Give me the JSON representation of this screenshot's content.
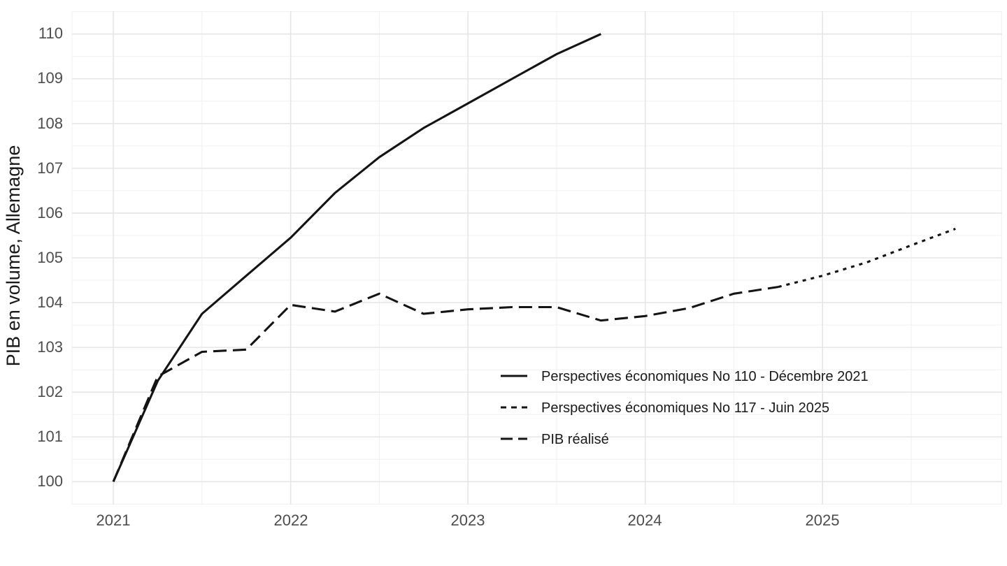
{
  "chart_data": {
    "type": "line",
    "title": "",
    "xlabel": "",
    "ylabel": "PIB en volume, Allemagne",
    "grid": "on",
    "legend_position": "inside-right-lower",
    "xlim": [
      2020.767,
      2026.013
    ],
    "ylim": [
      99.49,
      110.51
    ],
    "x_ticks": [
      {
        "value": 2021,
        "label": "2021"
      },
      {
        "value": 2022,
        "label": "2022"
      },
      {
        "value": 2023,
        "label": "2023"
      },
      {
        "value": 2024,
        "label": "2024"
      },
      {
        "value": 2025,
        "label": "2025"
      }
    ],
    "y_ticks": [
      {
        "value": 100,
        "label": "100"
      },
      {
        "value": 101,
        "label": "101"
      },
      {
        "value": 102,
        "label": "102"
      },
      {
        "value": 103,
        "label": "103"
      },
      {
        "value": 104,
        "label": "104"
      },
      {
        "value": 105,
        "label": "105"
      },
      {
        "value": 106,
        "label": "106"
      },
      {
        "value": 107,
        "label": "107"
      },
      {
        "value": 108,
        "label": "108"
      },
      {
        "value": 109,
        "label": "109"
      },
      {
        "value": 110,
        "label": "110"
      }
    ],
    "x_minor_gridlines": [
      2020.767,
      2021.5,
      2022.5,
      2023.5,
      2024.5,
      2025.5,
      2026.01
    ],
    "y_minor_gridlines": [
      99.5,
      100.5,
      101.5,
      102.5,
      103.5,
      104.5,
      105.5,
      106.5,
      107.5,
      108.5,
      109.5,
      110.5
    ],
    "series": [
      {
        "name": "Perspectives économiques No 110 - Décembre 2021",
        "linetype": "solid",
        "color": "#141414",
        "x": [
          2021.0,
          2021.25,
          2021.5,
          2021.75,
          2022.0,
          2022.25,
          2022.5,
          2022.75,
          2023.0,
          2023.25,
          2023.5,
          2023.75
        ],
        "values": [
          100.0,
          102.25,
          103.75,
          104.6,
          105.45,
          106.45,
          107.25,
          107.9,
          108.45,
          109.0,
          109.55,
          110.0
        ]
      },
      {
        "name": "Perspectives économiques No 117 - Juin 2025",
        "linetype": "dotted",
        "color": "#141414",
        "x": [
          2024.75,
          2025.0,
          2025.25,
          2025.5,
          2025.75
        ],
        "values": [
          104.35,
          104.6,
          104.9,
          105.28,
          105.65
        ]
      },
      {
        "name": "PIB réalisé",
        "linetype": "longdash",
        "color": "#141414",
        "x": [
          2021.0,
          2021.25,
          2021.5,
          2021.75,
          2022.0,
          2022.25,
          2022.5,
          2022.75,
          2023.0,
          2023.25,
          2023.5,
          2023.75,
          2024.0,
          2024.25,
          2024.5,
          2024.75
        ],
        "values": [
          100.0,
          102.35,
          102.9,
          102.95,
          103.95,
          103.8,
          104.2,
          103.75,
          103.85,
          103.9,
          103.9,
          103.6,
          103.7,
          103.88,
          104.2,
          104.35
        ]
      }
    ]
  },
  "colors": {
    "line": "#141414",
    "tick_label": "#4d4d4d",
    "text": "#1a1a1a",
    "grid_major": "#e6e6e6",
    "grid_minor": "#f0f0f0",
    "background": "#ffffff"
  }
}
